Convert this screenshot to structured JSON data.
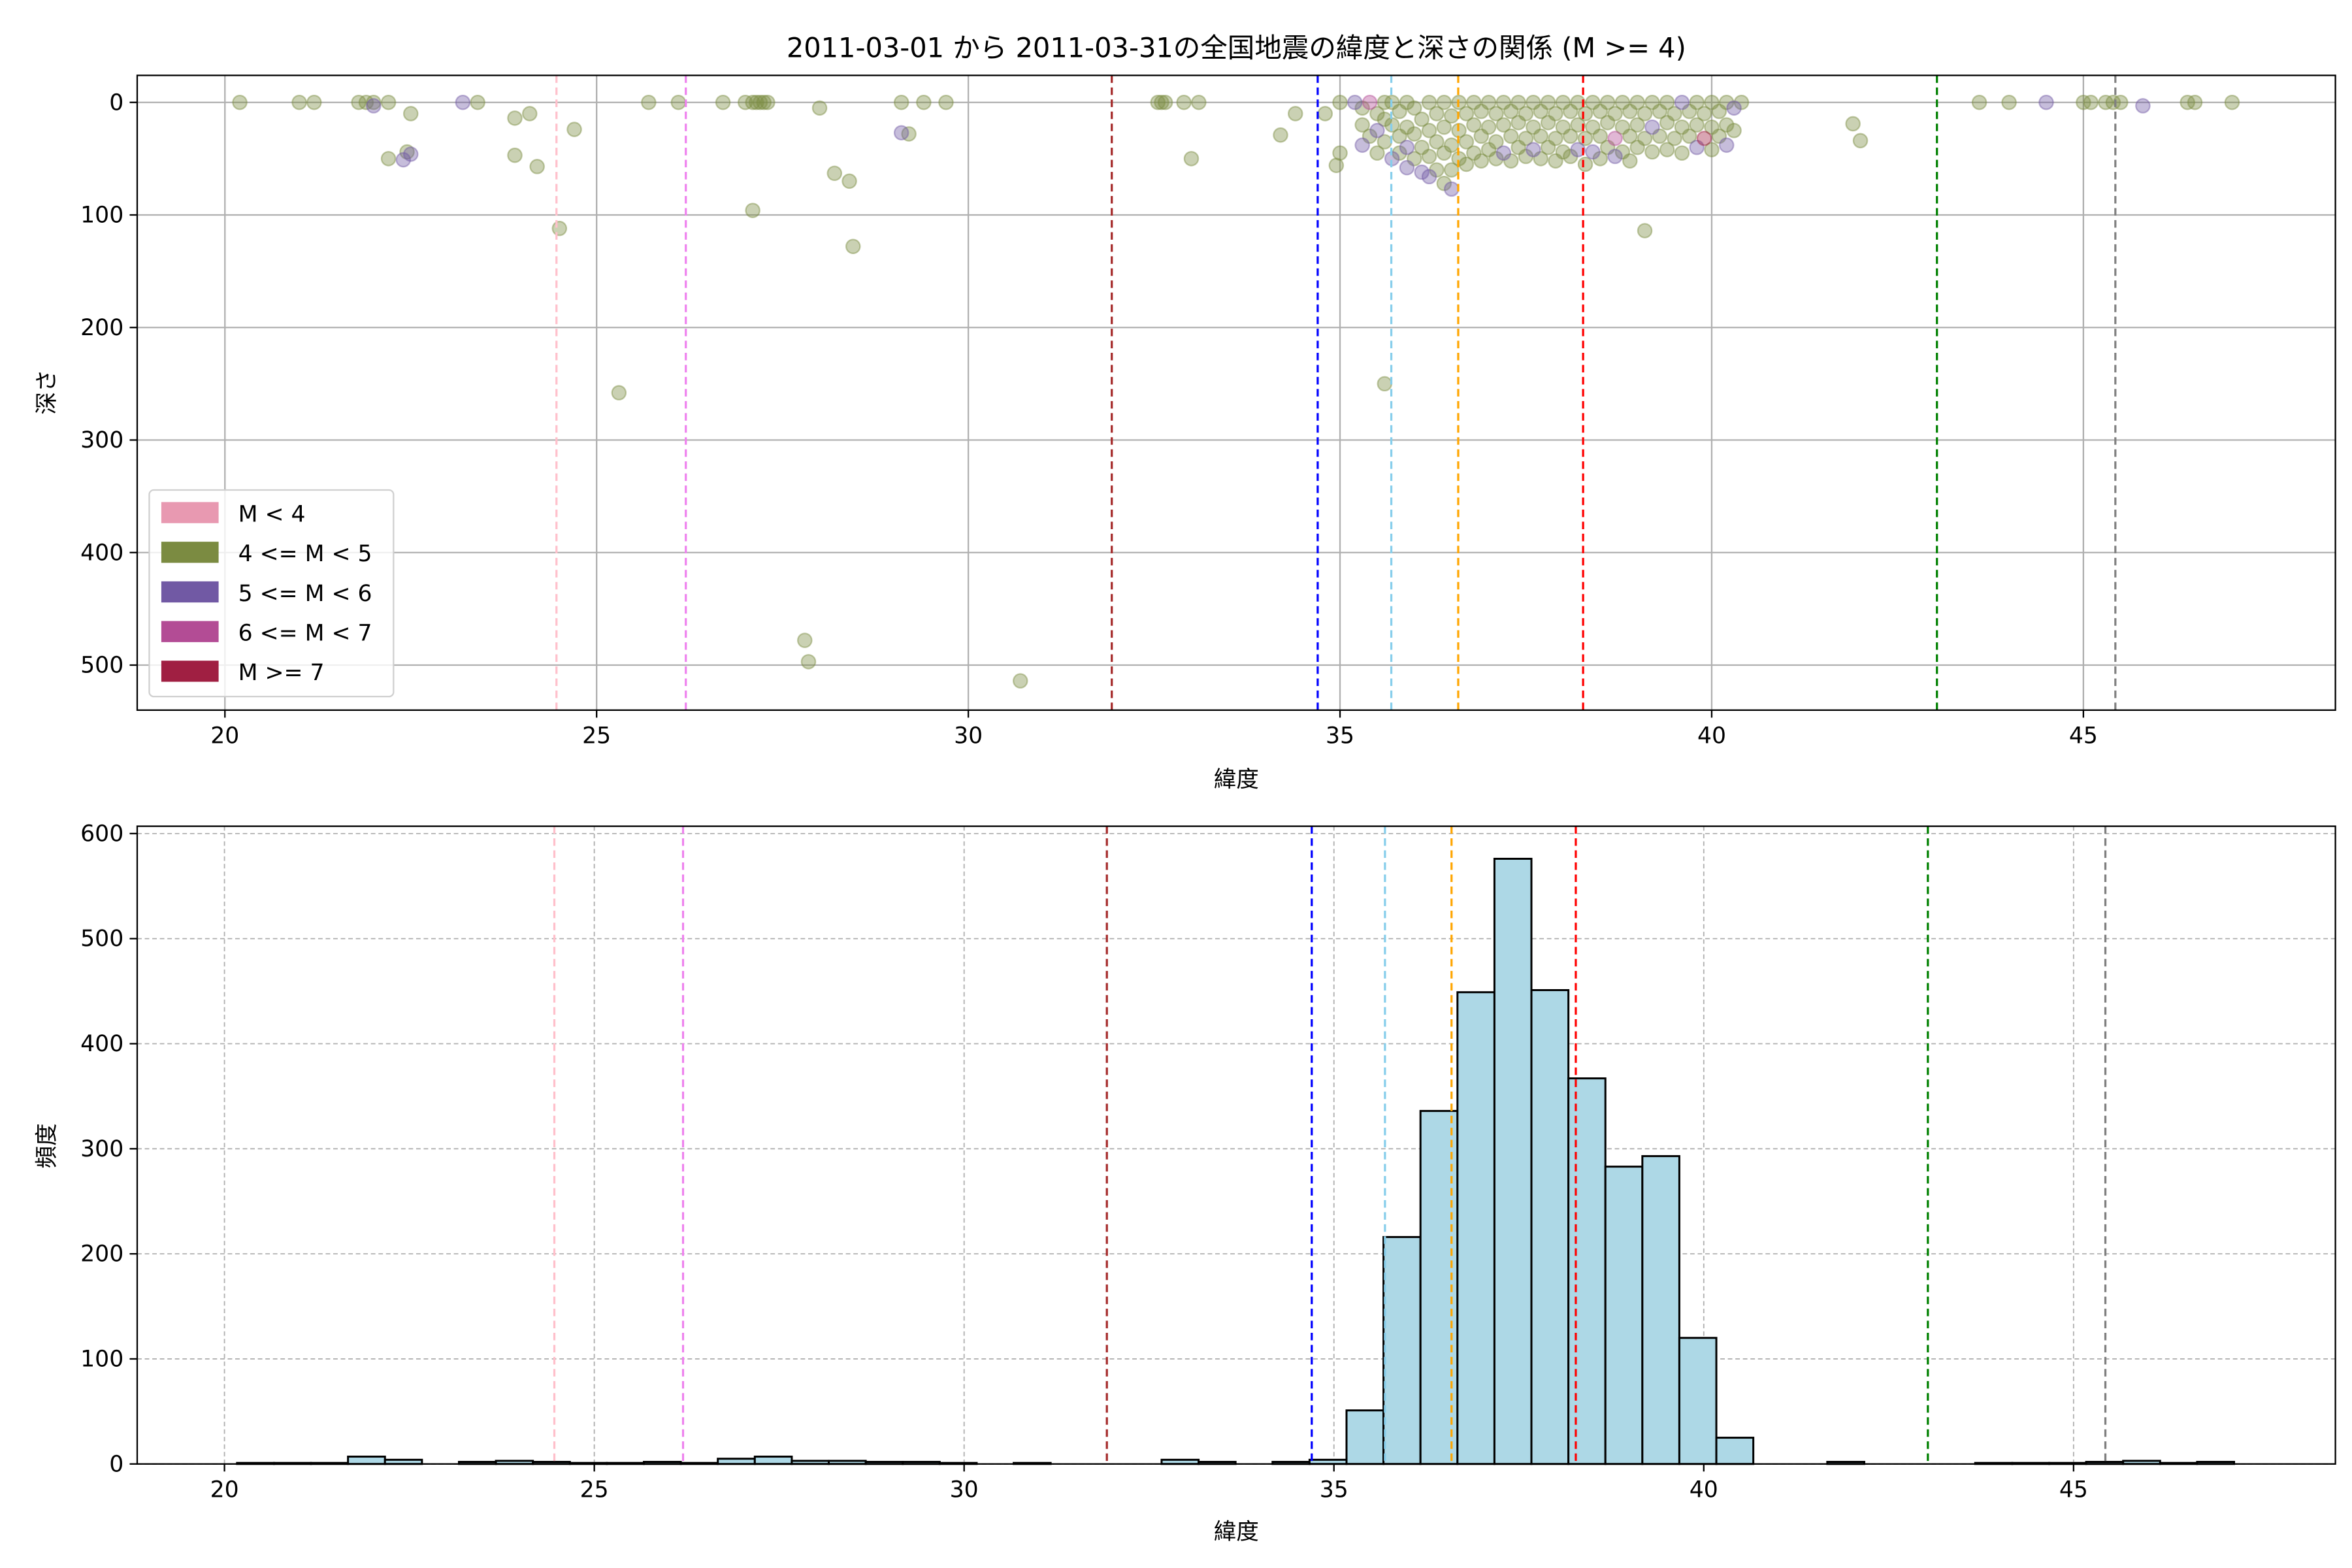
{
  "chart_data": [
    {
      "type": "scatter",
      "title": "2011-03-01 から 2011-03-31の全国地震の緯度と深さの関係 (M >= 4)",
      "xlabel": "緯度",
      "ylabel": "深さ",
      "xlim": [
        18.82,
        48.39
      ],
      "ylim": [
        540,
        -24
      ],
      "y_inverted": true,
      "grid": true,
      "xticks": [
        "20",
        "25",
        "30",
        "35",
        "40",
        "45"
      ],
      "yticks": [
        "0",
        "100",
        "200",
        "300",
        "400",
        "500"
      ],
      "legend_position": "lower-left",
      "legend": [
        {
          "label": "M < 4",
          "color": "#e899b1"
        },
        {
          "label": "4 <= M < 5",
          "color": "#7b8b41"
        },
        {
          "label": "5 <= M < 6",
          "color": "#7159a4"
        },
        {
          "label": "6 <= M < 7",
          "color": "#b34c95"
        },
        {
          "label": "M >= 7",
          "color": "#a01f42"
        }
      ],
      "reference_lines": [
        {
          "x": 24.46,
          "color": "#ffc0cb"
        },
        {
          "x": 26.2,
          "color": "#ee82ee"
        },
        {
          "x": 31.93,
          "color": "#a52a2a"
        },
        {
          "x": 34.7,
          "color": "#0000ff"
        },
        {
          "x": 35.69,
          "color": "#87ceeb"
        },
        {
          "x": 36.59,
          "color": "#ffa500"
        },
        {
          "x": 38.27,
          "color": "#ff0000"
        },
        {
          "x": 43.03,
          "color": "#008000"
        },
        {
          "x": 45.43,
          "color": "#808080"
        }
      ],
      "points_format": [
        "latitude",
        "depth",
        "magnitude_class_index"
      ],
      "points": [
        [
          20.2,
          0,
          1
        ],
        [
          21.0,
          0,
          1
        ],
        [
          21.2,
          0,
          1
        ],
        [
          21.8,
          0,
          1
        ],
        [
          21.9,
          0,
          1
        ],
        [
          22.0,
          3,
          2
        ],
        [
          22.0,
          0,
          1
        ],
        [
          22.2,
          0,
          1
        ],
        [
          22.5,
          10,
          1
        ],
        [
          22.2,
          50,
          1
        ],
        [
          22.4,
          51,
          2
        ],
        [
          22.5,
          46,
          2
        ],
        [
          22.45,
          44,
          1
        ],
        [
          23.2,
          0,
          2
        ],
        [
          23.4,
          0,
          1
        ],
        [
          23.9,
          14,
          1
        ],
        [
          24.1,
          10,
          1
        ],
        [
          23.9,
          47,
          1
        ],
        [
          24.2,
          57,
          1
        ],
        [
          24.7,
          24,
          1
        ],
        [
          24.5,
          112,
          1
        ],
        [
          25.3,
          258,
          1
        ],
        [
          25.7,
          0,
          1
        ],
        [
          26.1,
          0,
          1
        ],
        [
          26.7,
          0,
          1
        ],
        [
          27.0,
          0,
          1
        ],
        [
          27.1,
          0,
          1
        ],
        [
          27.15,
          0,
          1
        ],
        [
          27.2,
          0,
          1
        ],
        [
          27.25,
          0,
          1
        ],
        [
          27.3,
          0,
          1
        ],
        [
          27.1,
          96,
          1
        ],
        [
          28.0,
          5,
          1
        ],
        [
          28.2,
          63,
          1
        ],
        [
          28.4,
          70,
          1
        ],
        [
          28.45,
          128,
          1
        ],
        [
          27.8,
          478,
          1
        ],
        [
          27.85,
          497,
          1
        ],
        [
          30.7,
          514,
          1
        ],
        [
          29.1,
          0,
          1
        ],
        [
          29.2,
          28,
          1
        ],
        [
          29.1,
          27,
          2
        ],
        [
          29.4,
          0,
          1
        ],
        [
          29.7,
          0,
          1
        ],
        [
          32.55,
          0,
          1
        ],
        [
          32.6,
          0,
          1
        ],
        [
          32.65,
          0,
          1
        ],
        [
          32.9,
          0,
          1
        ],
        [
          33.0,
          50,
          1
        ],
        [
          33.1,
          0,
          1
        ],
        [
          34.2,
          29,
          1
        ],
        [
          34.4,
          10,
          1
        ],
        [
          34.8,
          10,
          1
        ],
        [
          35.0,
          0,
          1
        ],
        [
          35.0,
          45,
          1
        ],
        [
          34.95,
          56,
          1
        ],
        [
          35.6,
          250,
          1
        ],
        [
          39.1,
          114,
          1
        ],
        [
          41.9,
          19,
          1
        ],
        [
          42.0,
          34,
          1
        ],
        [
          43.6,
          0,
          1
        ],
        [
          44.0,
          0,
          1
        ],
        [
          44.5,
          0,
          2
        ],
        [
          45.0,
          0,
          1
        ],
        [
          45.1,
          0,
          1
        ],
        [
          45.3,
          0,
          1
        ],
        [
          45.4,
          0,
          1
        ],
        [
          45.5,
          0,
          1
        ],
        [
          45.8,
          3,
          2
        ],
        [
          46.4,
          0,
          1
        ],
        [
          46.5,
          0,
          1
        ],
        [
          47.0,
          0,
          1
        ],
        [
          35.2,
          0,
          2
        ],
        [
          35.3,
          5,
          1
        ],
        [
          35.3,
          20,
          1
        ],
        [
          35.3,
          38,
          2
        ],
        [
          35.4,
          0,
          3
        ],
        [
          35.4,
          30,
          1
        ],
        [
          35.5,
          10,
          1
        ],
        [
          35.5,
          45,
          1
        ],
        [
          35.5,
          25,
          2
        ],
        [
          35.6,
          0,
          1
        ],
        [
          35.6,
          15,
          1
        ],
        [
          35.6,
          35,
          1
        ],
        [
          35.7,
          0,
          1
        ],
        [
          35.7,
          20,
          1
        ],
        [
          35.7,
          50,
          2
        ],
        [
          35.8,
          8,
          1
        ],
        [
          35.8,
          30,
          1
        ],
        [
          35.8,
          45,
          1
        ],
        [
          35.9,
          0,
          1
        ],
        [
          35.9,
          22,
          1
        ],
        [
          35.9,
          40,
          2
        ],
        [
          35.9,
          58,
          2
        ],
        [
          36.0,
          5,
          1
        ],
        [
          36.0,
          28,
          1
        ],
        [
          36.0,
          50,
          1
        ],
        [
          36.1,
          15,
          1
        ],
        [
          36.1,
          40,
          1
        ],
        [
          36.1,
          62,
          2
        ],
        [
          36.2,
          0,
          1
        ],
        [
          36.2,
          25,
          1
        ],
        [
          36.2,
          48,
          1
        ],
        [
          36.2,
          66,
          2
        ],
        [
          36.3,
          10,
          1
        ],
        [
          36.3,
          35,
          1
        ],
        [
          36.3,
          60,
          1
        ],
        [
          36.4,
          0,
          1
        ],
        [
          36.4,
          22,
          1
        ],
        [
          36.4,
          45,
          1
        ],
        [
          36.4,
          72,
          1
        ],
        [
          36.5,
          12,
          1
        ],
        [
          36.5,
          38,
          1
        ],
        [
          36.5,
          60,
          1
        ],
        [
          36.5,
          77,
          2
        ],
        [
          36.6,
          0,
          1
        ],
        [
          36.6,
          25,
          1
        ],
        [
          36.6,
          50,
          1
        ],
        [
          36.7,
          10,
          1
        ],
        [
          36.7,
          35,
          1
        ],
        [
          36.7,
          55,
          1
        ],
        [
          36.8,
          0,
          1
        ],
        [
          36.8,
          20,
          1
        ],
        [
          36.8,
          45,
          1
        ],
        [
          36.9,
          8,
          1
        ],
        [
          36.9,
          30,
          1
        ],
        [
          36.9,
          52,
          1
        ],
        [
          37.0,
          0,
          1
        ],
        [
          37.0,
          22,
          1
        ],
        [
          37.0,
          42,
          1
        ],
        [
          37.1,
          10,
          1
        ],
        [
          37.1,
          35,
          1
        ],
        [
          37.1,
          50,
          1
        ],
        [
          37.2,
          0,
          1
        ],
        [
          37.2,
          20,
          1
        ],
        [
          37.2,
          45,
          2
        ],
        [
          37.3,
          8,
          1
        ],
        [
          37.3,
          30,
          1
        ],
        [
          37.3,
          52,
          1
        ],
        [
          37.4,
          0,
          1
        ],
        [
          37.4,
          18,
          1
        ],
        [
          37.4,
          40,
          1
        ],
        [
          37.5,
          10,
          1
        ],
        [
          37.5,
          32,
          1
        ],
        [
          37.5,
          48,
          1
        ],
        [
          37.6,
          0,
          1
        ],
        [
          37.6,
          22,
          1
        ],
        [
          37.6,
          42,
          2
        ],
        [
          37.7,
          8,
          1
        ],
        [
          37.7,
          30,
          1
        ],
        [
          37.7,
          50,
          1
        ],
        [
          37.8,
          0,
          1
        ],
        [
          37.8,
          18,
          1
        ],
        [
          37.8,
          40,
          1
        ],
        [
          37.9,
          10,
          1
        ],
        [
          37.9,
          32,
          1
        ],
        [
          37.9,
          52,
          1
        ],
        [
          38.0,
          0,
          1
        ],
        [
          38.0,
          22,
          1
        ],
        [
          38.0,
          44,
          1
        ],
        [
          38.1,
          8,
          1
        ],
        [
          38.1,
          30,
          1
        ],
        [
          38.1,
          48,
          1
        ],
        [
          38.2,
          0,
          1
        ],
        [
          38.2,
          20,
          1
        ],
        [
          38.2,
          42,
          2
        ],
        [
          38.3,
          10,
          1
        ],
        [
          38.3,
          32,
          1
        ],
        [
          38.3,
          55,
          1
        ],
        [
          38.4,
          0,
          1
        ],
        [
          38.4,
          22,
          1
        ],
        [
          38.4,
          44,
          2
        ],
        [
          38.5,
          8,
          1
        ],
        [
          38.5,
          30,
          1
        ],
        [
          38.5,
          50,
          1
        ],
        [
          38.6,
          0,
          1
        ],
        [
          38.6,
          18,
          1
        ],
        [
          38.6,
          40,
          1
        ],
        [
          38.7,
          10,
          1
        ],
        [
          38.7,
          32,
          3
        ],
        [
          38.7,
          48,
          2
        ],
        [
          38.8,
          0,
          1
        ],
        [
          38.8,
          22,
          1
        ],
        [
          38.8,
          44,
          1
        ],
        [
          38.9,
          8,
          1
        ],
        [
          38.9,
          30,
          1
        ],
        [
          38.9,
          52,
          1
        ],
        [
          39.0,
          0,
          1
        ],
        [
          39.0,
          20,
          1
        ],
        [
          39.0,
          40,
          1
        ],
        [
          39.1,
          10,
          1
        ],
        [
          39.1,
          32,
          1
        ],
        [
          39.2,
          0,
          1
        ],
        [
          39.2,
          22,
          2
        ],
        [
          39.2,
          44,
          1
        ],
        [
          39.3,
          8,
          1
        ],
        [
          39.3,
          30,
          1
        ],
        [
          39.4,
          0,
          1
        ],
        [
          39.4,
          18,
          1
        ],
        [
          39.4,
          42,
          1
        ],
        [
          39.5,
          10,
          1
        ],
        [
          39.5,
          32,
          1
        ],
        [
          39.6,
          0,
          2
        ],
        [
          39.6,
          22,
          1
        ],
        [
          39.6,
          45,
          1
        ],
        [
          39.7,
          8,
          1
        ],
        [
          39.7,
          30,
          1
        ],
        [
          39.8,
          0,
          1
        ],
        [
          39.8,
          20,
          1
        ],
        [
          39.8,
          40,
          2
        ],
        [
          39.9,
          10,
          1
        ],
        [
          39.9,
          32,
          4
        ],
        [
          40.0,
          0,
          1
        ],
        [
          40.0,
          22,
          1
        ],
        [
          40.0,
          42,
          1
        ],
        [
          40.1,
          8,
          1
        ],
        [
          40.1,
          30,
          1
        ],
        [
          40.2,
          0,
          1
        ],
        [
          40.2,
          20,
          1
        ],
        [
          40.2,
          38,
          2
        ],
        [
          40.3,
          5,
          2
        ],
        [
          40.3,
          25,
          1
        ],
        [
          40.4,
          0,
          1
        ]
      ]
    },
    {
      "type": "bar",
      "subtype": "histogram",
      "xlabel": "緯度",
      "ylabel": "頻度",
      "xlim": [
        18.82,
        48.54
      ],
      "ylim": [
        0,
        607
      ],
      "grid": true,
      "grid_style": "dashed",
      "bar_color": "#add8e6",
      "edge_color": "#000000",
      "xticks": [
        "20",
        "25",
        "30",
        "35",
        "40",
        "45"
      ],
      "yticks": [
        "0",
        "100",
        "200",
        "300",
        "400",
        "500",
        "600"
      ],
      "bin_start": 20.17,
      "bin_width": 0.5,
      "values": [
        1,
        1,
        1,
        7,
        4,
        0,
        2,
        3,
        2,
        1,
        1,
        2,
        1,
        5,
        7,
        3,
        3,
        2,
        2,
        1,
        0,
        1,
        0,
        0,
        0,
        4,
        2,
        0,
        2,
        4,
        51,
        216,
        336,
        449,
        576,
        451,
        367,
        283,
        293,
        120,
        25,
        0,
        0,
        2,
        0,
        0,
        0,
        1,
        1,
        1,
        2,
        3,
        1,
        2
      ],
      "reference_lines": [
        {
          "x": 24.46,
          "color": "#ffc0cb"
        },
        {
          "x": 26.2,
          "color": "#ee82ee"
        },
        {
          "x": 31.93,
          "color": "#a52a2a"
        },
        {
          "x": 34.7,
          "color": "#0000ff"
        },
        {
          "x": 35.69,
          "color": "#87ceeb"
        },
        {
          "x": 36.59,
          "color": "#ffa500"
        },
        {
          "x": 38.27,
          "color": "#ff0000"
        },
        {
          "x": 43.03,
          "color": "#008000"
        },
        {
          "x": 45.43,
          "color": "#808080"
        }
      ]
    }
  ]
}
